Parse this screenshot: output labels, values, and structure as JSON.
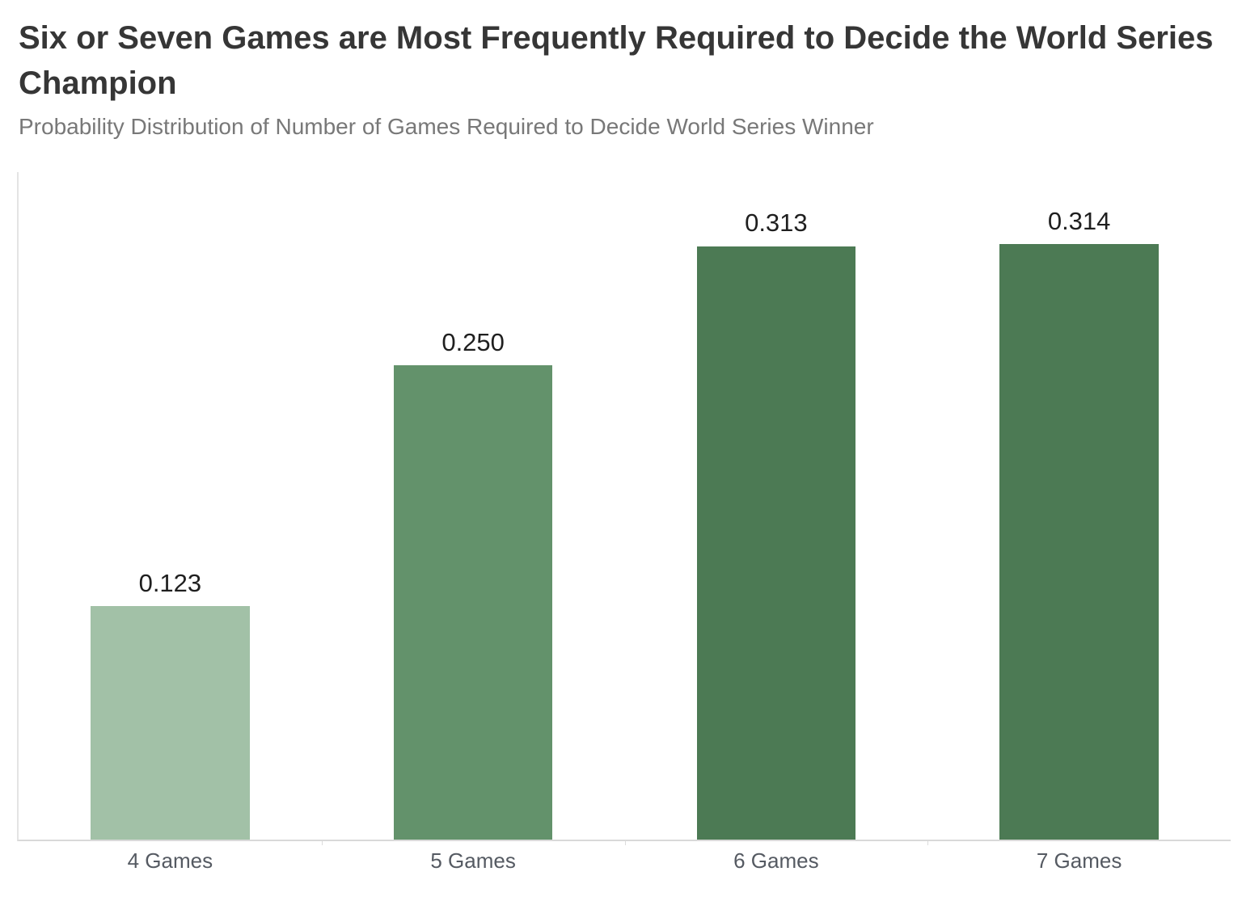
{
  "header": {
    "title": "Six or Seven Games are Most Frequently Required to Decide the World Series Champion",
    "subtitle": "Probability Distribution of Number of Games Required to Decide World Series Winner"
  },
  "chart_data": {
    "type": "bar",
    "title": "Six or Seven Games are Most Frequently Required to Decide the World Series Champion",
    "subtitle": "Probability Distribution of Number of Games Required to Decide World Series Winner",
    "categories": [
      "4 Games",
      "5 Games",
      "6 Games",
      "7 Games"
    ],
    "values": [
      0.123,
      0.25,
      0.313,
      0.314
    ],
    "value_labels": [
      "0.123",
      "0.250",
      "0.313",
      "0.314"
    ],
    "bar_colors": [
      "#a2c1a7",
      "#63926b",
      "#4c7a54",
      "#4c7a54"
    ],
    "xlabel": "",
    "ylabel": "",
    "ylim": [
      0,
      0.352
    ],
    "grid": false,
    "legend": false,
    "data_labels": "above-bars",
    "colors": {
      "title_text": "#363636",
      "subtitle_text": "#787878",
      "value_label_text": "#1f1f1f",
      "axis_label_text": "#555a62",
      "axis_line": "#d9d9d9"
    }
  }
}
